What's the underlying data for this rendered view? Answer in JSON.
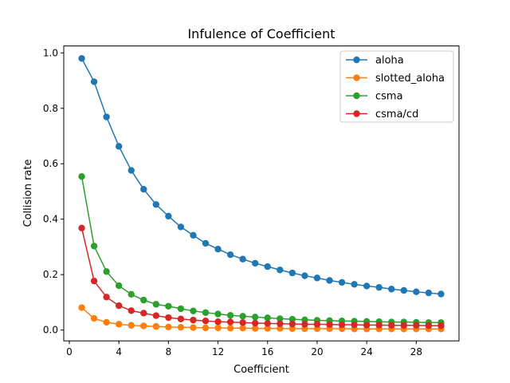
{
  "chart_data": {
    "type": "line",
    "title": "Infulence of Coefficient",
    "xlabel": "Coefficient",
    "ylabel": "Collision rate",
    "xlim": [
      -0.45,
      31.45
    ],
    "ylim": [
      -0.039,
      1.025
    ],
    "xticks": [
      0,
      4,
      8,
      12,
      16,
      20,
      24,
      28
    ],
    "yticks": [
      0.0,
      0.2,
      0.4,
      0.6,
      0.8,
      1.0
    ],
    "xtick_labels": [
      "0",
      "4",
      "8",
      "12",
      "16",
      "20",
      "24",
      "28"
    ],
    "ytick_labels": [
      "0.0",
      "0.2",
      "0.4",
      "0.6",
      "0.8",
      "1.0"
    ],
    "grid": false,
    "legend_position": "top-right",
    "x": [
      1,
      2,
      3,
      4,
      5,
      6,
      7,
      8,
      9,
      10,
      11,
      12,
      13,
      14,
      15,
      16,
      17,
      18,
      19,
      20,
      21,
      22,
      23,
      24,
      25,
      26,
      27,
      28,
      29,
      30
    ],
    "series": [
      {
        "name": "aloha",
        "color": "#1f77b4",
        "values": [
          0.98,
          0.896,
          0.769,
          0.663,
          0.576,
          0.508,
          0.453,
          0.411,
          0.372,
          0.342,
          0.313,
          0.292,
          0.272,
          0.256,
          0.241,
          0.229,
          0.217,
          0.206,
          0.196,
          0.188,
          0.179,
          0.172,
          0.165,
          0.159,
          0.154,
          0.148,
          0.143,
          0.138,
          0.134,
          0.13
        ]
      },
      {
        "name": "slotted_aloha",
        "color": "#ff7f0e",
        "values": [
          0.081,
          0.042,
          0.028,
          0.021,
          0.017,
          0.015,
          0.013,
          0.011,
          0.01,
          0.009,
          0.008,
          0.008,
          0.007,
          0.007,
          0.006,
          0.006,
          0.006,
          0.005,
          0.005,
          0.005,
          0.005,
          0.005,
          0.004,
          0.004,
          0.004,
          0.004,
          0.004,
          0.004,
          0.004,
          0.004
        ]
      },
      {
        "name": "csma",
        "color": "#2ca02c",
        "values": [
          0.554,
          0.303,
          0.211,
          0.16,
          0.129,
          0.108,
          0.093,
          0.086,
          0.077,
          0.069,
          0.063,
          0.058,
          0.053,
          0.05,
          0.047,
          0.044,
          0.041,
          0.039,
          0.037,
          0.035,
          0.034,
          0.033,
          0.032,
          0.031,
          0.03,
          0.029,
          0.029,
          0.028,
          0.027,
          0.027
        ]
      },
      {
        "name": "csma/cd",
        "color": "#d62728",
        "values": [
          0.368,
          0.177,
          0.119,
          0.088,
          0.07,
          0.061,
          0.052,
          0.045,
          0.04,
          0.036,
          0.033,
          0.03,
          0.029,
          0.027,
          0.025,
          0.024,
          0.023,
          0.022,
          0.021,
          0.021,
          0.02,
          0.019,
          0.019,
          0.018,
          0.018,
          0.017,
          0.017,
          0.017,
          0.016,
          0.016
        ]
      }
    ]
  }
}
